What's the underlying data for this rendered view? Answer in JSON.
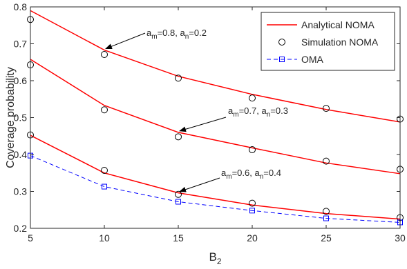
{
  "chart_data": {
    "type": "line",
    "title": "",
    "xlabel": "B",
    "xlabel_sub": "2",
    "ylabel": "Coverage probability",
    "xlim": [
      5,
      30
    ],
    "ylim": [
      0.2,
      0.8
    ],
    "x": [
      5,
      10,
      15,
      20,
      25,
      30
    ],
    "x_ticks": [
      "5",
      "10",
      "15",
      "20",
      "25",
      "30"
    ],
    "y_ticks": [
      "0.2",
      "0.3",
      "0.4",
      "0.5",
      "0.6",
      "0.7",
      "0.8"
    ],
    "grid": false,
    "legend_placement": "top-right",
    "colors": {
      "analytical": "#ff0000",
      "simulation": "#000000",
      "oma": "#0000ff",
      "axes": "#262626"
    },
    "legend": [
      {
        "label": "Analytical NOMA",
        "style": "red-line"
      },
      {
        "label": "Simulation NOMA",
        "style": "black-circle"
      },
      {
        "label": "OMA",
        "style": "blue-dashed-square"
      }
    ],
    "series": [
      {
        "group": "a_m=0.8, a_n=0.2",
        "kind": "analytical",
        "values": [
          0.79,
          0.683,
          0.612,
          0.563,
          0.522,
          0.488
        ]
      },
      {
        "group": "a_m=0.8, a_n=0.2",
        "kind": "simulation",
        "values": [
          0.766,
          0.671,
          0.607,
          0.553,
          0.525,
          0.496
        ]
      },
      {
        "group": "a_m=0.7, a_n=0.3",
        "kind": "analytical",
        "values": [
          0.658,
          0.533,
          0.46,
          0.418,
          0.377,
          0.348
        ]
      },
      {
        "group": "a_m=0.7, a_n=0.3",
        "kind": "simulation",
        "values": [
          0.643,
          0.521,
          0.448,
          0.413,
          0.382,
          0.36
        ]
      },
      {
        "group": "a_m=0.6, a_n=0.4",
        "kind": "analytical",
        "values": [
          0.452,
          0.35,
          0.296,
          0.263,
          0.24,
          0.225
        ]
      },
      {
        "group": "a_m=0.6, a_n=0.4",
        "kind": "simulation",
        "values": [
          0.453,
          0.357,
          0.292,
          0.268,
          0.246,
          0.229
        ]
      },
      {
        "group": "OMA",
        "kind": "oma",
        "values": [
          0.397,
          0.313,
          0.272,
          0.248,
          0.227,
          0.216
        ]
      }
    ],
    "annotations": [
      {
        "m_value": "0.8",
        "n_value": "0.2",
        "point_x": 10,
        "point_y": 0.683
      },
      {
        "m_value": "0.7",
        "n_value": "0.3",
        "point_x": 15,
        "point_y": 0.46
      },
      {
        "m_value": "0.6",
        "n_value": "0.4",
        "point_x": 15,
        "point_y": 0.296
      }
    ]
  }
}
